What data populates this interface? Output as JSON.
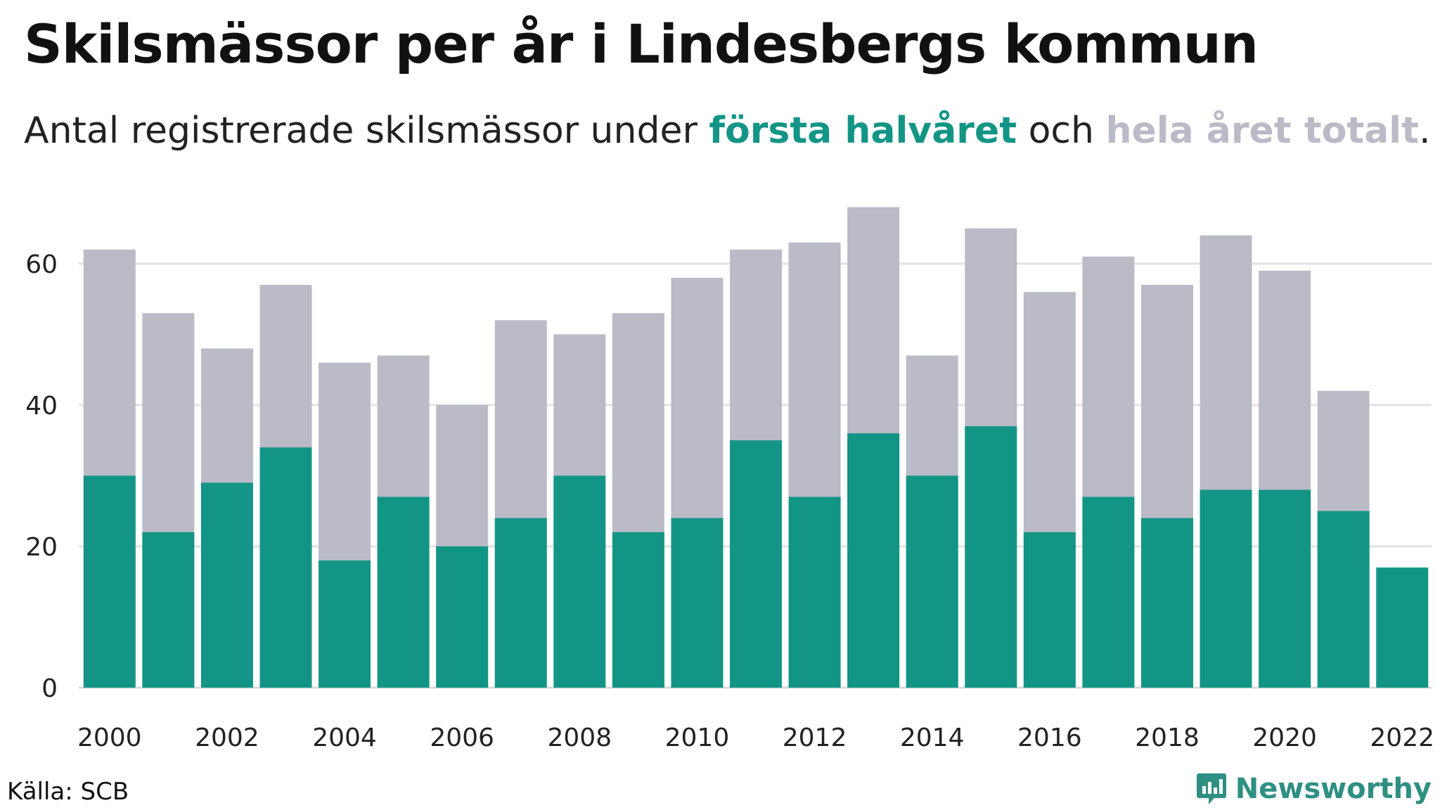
{
  "title": "Skilsmässor per år i Lindesbergs kommun",
  "subtitle": {
    "prefix": "Antal registrerade skilsmässor under ",
    "first_half": "första halvåret",
    "middle": " och ",
    "total": "hela året totalt",
    "suffix": "."
  },
  "source": "Källa: SCB",
  "brand": "Newsworthy",
  "colors": {
    "first_half": "#139586",
    "total": "#bbbac7",
    "grid": "#e2e2e2",
    "brand": "#2f8f83"
  },
  "chart_data": {
    "type": "bar",
    "stacked": false,
    "overlapping": true,
    "categories": [
      2000,
      2001,
      2002,
      2003,
      2004,
      2005,
      2006,
      2007,
      2008,
      2009,
      2010,
      2011,
      2012,
      2013,
      2014,
      2015,
      2016,
      2017,
      2018,
      2019,
      2020,
      2021,
      2022
    ],
    "series": [
      {
        "name": "hela året totalt",
        "color": "#bbbac7",
        "values": [
          62,
          53,
          48,
          57,
          46,
          47,
          40,
          52,
          50,
          53,
          58,
          62,
          63,
          68,
          47,
          65,
          56,
          61,
          57,
          64,
          59,
          42,
          null
        ]
      },
      {
        "name": "första halvåret",
        "color": "#139586",
        "values": [
          30,
          22,
          29,
          34,
          18,
          27,
          20,
          24,
          30,
          22,
          24,
          35,
          27,
          36,
          30,
          37,
          22,
          27,
          24,
          28,
          28,
          25,
          17
        ]
      }
    ],
    "x_tick_labels": [
      "2000",
      "2002",
      "2004",
      "2006",
      "2008",
      "2010",
      "2012",
      "2014",
      "2016",
      "2018",
      "2020",
      "2022"
    ],
    "y_ticks": [
      0,
      20,
      40,
      60
    ],
    "ylim": [
      0,
      70
    ],
    "grid": true,
    "legend": "in subtitle"
  }
}
